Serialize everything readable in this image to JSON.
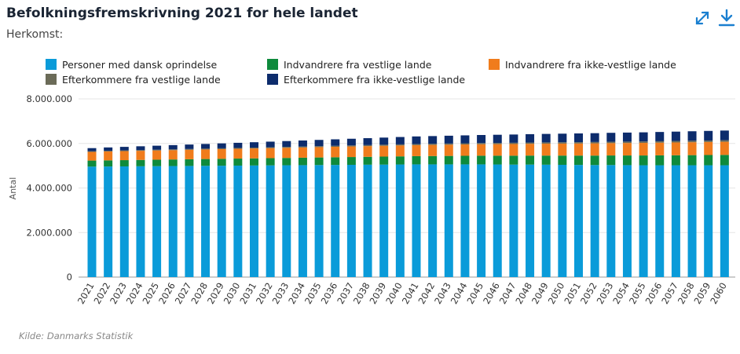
{
  "header": {
    "title": "Befolkningsfremskrivning 2021 for hele landet",
    "subtitle": "Herkomst:",
    "expand_icon": "expand-icon",
    "download_icon": "download-icon"
  },
  "footer": {
    "source": "Kilde: Danmarks Statistik"
  },
  "chart_data": {
    "type": "bar",
    "stacked": true,
    "title": "Befolkningsfremskrivning 2021 for hele landet",
    "ylabel": "Antal",
    "xlabel": "",
    "ylim": [
      0,
      8000000
    ],
    "yticks": [
      "0",
      "2.000.000",
      "4.000.000",
      "6.000.000",
      "8.000.000"
    ],
    "ytick_values": [
      0,
      2000000,
      4000000,
      6000000,
      8000000
    ],
    "grid": true,
    "legend_position": "top",
    "categories": [
      "2021",
      "2022",
      "2023",
      "2024",
      "2025",
      "2026",
      "2027",
      "2028",
      "2029",
      "2030",
      "2031",
      "2032",
      "2033",
      "2034",
      "2035",
      "2036",
      "2037",
      "2038",
      "2039",
      "2040",
      "2041",
      "2042",
      "2043",
      "2044",
      "2045",
      "2046",
      "2047",
      "2048",
      "2049",
      "2050",
      "2051",
      "2052",
      "2053",
      "2054",
      "2055",
      "2056",
      "2057",
      "2058",
      "2059",
      "2060"
    ],
    "series": [
      {
        "name": "Personer med dansk oprindelse",
        "color": "#0a9bd9",
        "values": [
          4960000,
          4965000,
          4970000,
          4975000,
          4980000,
          4985000,
          4990000,
          4995000,
          5000000,
          5005000,
          5010000,
          5015000,
          5020000,
          5025000,
          5030000,
          5035000,
          5040000,
          5045000,
          5050000,
          5055000,
          5060000,
          5060000,
          5060000,
          5060000,
          5060000,
          5055000,
          5050000,
          5050000,
          5045000,
          5040000,
          5035000,
          5030000,
          5030000,
          5025000,
          5020000,
          5020000,
          5020000,
          5020000,
          5020000,
          5020000
        ]
      },
      {
        "name": "Indvandrere fra vestlige lande",
        "color": "#0e8a3c",
        "values": [
          270000,
          275000,
          280000,
          285000,
          290000,
          295000,
          300000,
          305000,
          310000,
          315000,
          320000,
          325000,
          330000,
          335000,
          340000,
          345000,
          350000,
          355000,
          360000,
          365000,
          370000,
          375000,
          380000,
          385000,
          390000,
          395000,
          400000,
          405000,
          410000,
          415000,
          420000,
          425000,
          430000,
          435000,
          440000,
          445000,
          450000,
          455000,
          460000,
          465000
        ]
      },
      {
        "name": "Indvandrere fra ikke-vestlige lande",
        "color": "#f07c1c",
        "values": [
          390000,
          400000,
          405000,
          410000,
          415000,
          420000,
          425000,
          430000,
          435000,
          440000,
          445000,
          450000,
          455000,
          460000,
          465000,
          470000,
          475000,
          480000,
          485000,
          490000,
          495000,
          500000,
          505000,
          510000,
          515000,
          520000,
          525000,
          530000,
          535000,
          540000,
          545000,
          550000,
          555000,
          560000,
          565000,
          570000,
          575000,
          580000,
          585000,
          590000
        ]
      },
      {
        "name": "Efterkommere fra vestlige lande",
        "color": "#6b6b58",
        "values": [
          30000,
          31000,
          32000,
          33000,
          34000,
          35000,
          36000,
          37000,
          38000,
          39000,
          40000,
          41000,
          42000,
          43000,
          44000,
          45000,
          46000,
          47000,
          48000,
          49000,
          50000,
          51000,
          52000,
          53000,
          54000,
          55000,
          56000,
          57000,
          58000,
          59000,
          60000,
          61000,
          62000,
          63000,
          64000,
          65000,
          66000,
          67000,
          68000,
          69000
        ]
      },
      {
        "name": "Efterkommere fra ikke-vestlige lande",
        "color": "#0d2c6c",
        "values": [
          140000,
          150000,
          160000,
          170000,
          180000,
          190000,
          200000,
          210000,
          220000,
          230000,
          240000,
          250000,
          260000,
          270000,
          280000,
          290000,
          300000,
          310000,
          320000,
          330000,
          340000,
          345000,
          350000,
          355000,
          360000,
          365000,
          370000,
          375000,
          380000,
          385000,
          390000,
          395000,
          400000,
          405000,
          410000,
          415000,
          420000,
          425000,
          430000,
          435000
        ]
      }
    ]
  }
}
